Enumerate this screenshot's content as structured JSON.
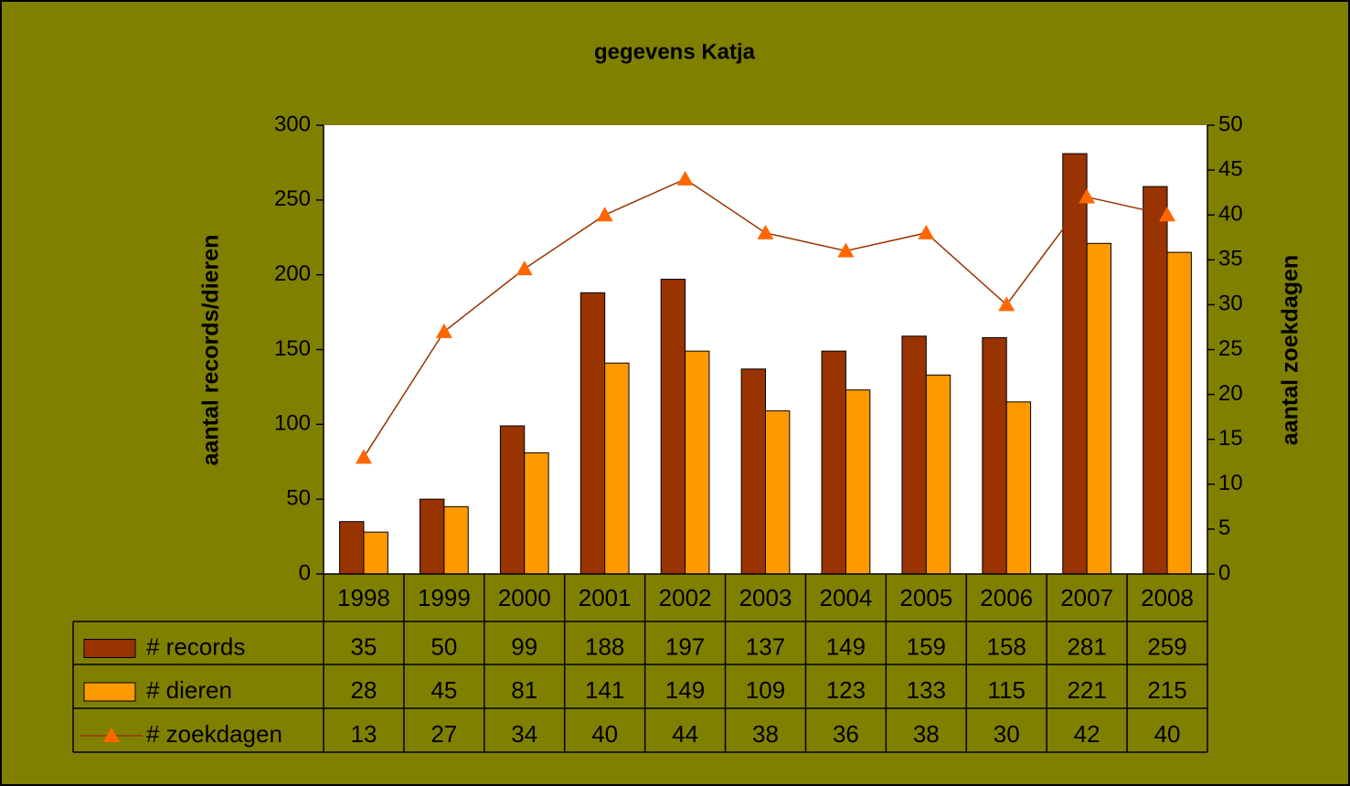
{
  "chart_data": {
    "type": "bar",
    "title": "gegevens Katja",
    "y_label": "aantal records/dieren",
    "y2_label": "aantal zoekdagen",
    "categories": [
      "1998",
      "1999",
      "2000",
      "2001",
      "2002",
      "2003",
      "2004",
      "2005",
      "2006",
      "2007",
      "2008"
    ],
    "series": [
      {
        "name": "# records",
        "type": "bar",
        "color": "#993300",
        "values": [
          35,
          50,
          99,
          188,
          197,
          137,
          149,
          159,
          158,
          281,
          259
        ]
      },
      {
        "name": "# dieren",
        "type": "bar",
        "color": "#ff9900",
        "values": [
          28,
          45,
          81,
          141,
          149,
          109,
          123,
          133,
          115,
          221,
          215
        ]
      },
      {
        "name": "# zoekdagen",
        "type": "line",
        "axis": "y2",
        "color": "#993300",
        "marker_color": "#ff6600",
        "values": [
          13,
          27,
          34,
          40,
          44,
          38,
          36,
          38,
          30,
          42,
          40
        ]
      }
    ],
    "ylim": [
      0,
      300
    ],
    "yticks": [
      0,
      50,
      100,
      150,
      200,
      250,
      300
    ],
    "y2lim": [
      0,
      50
    ],
    "y2ticks": [
      0,
      5,
      10,
      15,
      20,
      25,
      30,
      35,
      40,
      45,
      50
    ],
    "grid": false,
    "data_table": true
  }
}
